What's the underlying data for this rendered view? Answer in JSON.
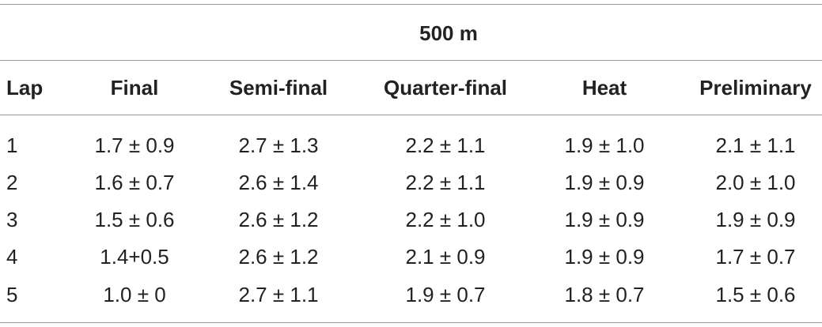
{
  "table": {
    "group_header": "500 m",
    "columns": [
      "Lap",
      "Final",
      "Semi-final",
      "Quarter-final",
      "Heat",
      "Preliminary"
    ],
    "rows": [
      [
        1,
        "1.7 ± 0.9",
        "2.7 ± 1.3",
        "2.2 ± 1.1",
        "1.9 ± 1.0",
        "2.1 ± 1.1"
      ],
      [
        2,
        "1.6 ± 0.7",
        "2.6 ± 1.4",
        "2.2 ± 1.1",
        "1.9 ± 0.9",
        "2.0 ± 1.0"
      ],
      [
        3,
        "1.5 ± 0.6",
        "2.6 ± 1.2",
        "2.2 ± 1.0",
        "1.9 ± 0.9",
        "1.9 ± 0.9"
      ],
      [
        4,
        "1.4+0.5",
        "2.6 ± 1.2",
        "2.1 ± 0.9",
        "1.9 ± 0.9",
        "1.7 ± 0.7"
      ],
      [
        5,
        "1.0 ± 0",
        "2.7 ± 1.1",
        "1.9 ± 0.7",
        "1.8 ± 0.7",
        "1.5 ± 0.6"
      ]
    ]
  }
}
